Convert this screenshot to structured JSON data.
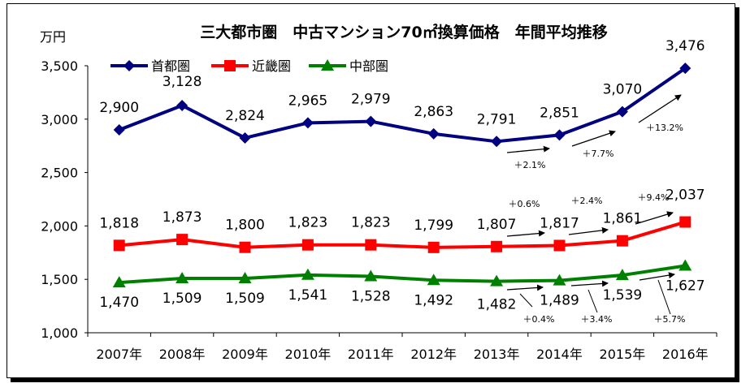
{
  "chart_data": {
    "type": "line",
    "title": "三大都市圏　中古マンション70㎡換算価格　年間平均推移",
    "ylabel": "万円",
    "xlabel": "",
    "ylim": [
      1000,
      3500
    ],
    "yticks": [
      "1,000",
      "1,500",
      "2,000",
      "2,500",
      "3,000",
      "3,500"
    ],
    "ytick_values": [
      1000,
      1500,
      2000,
      2500,
      3000,
      3500
    ],
    "grid": false,
    "legend": "top-left",
    "categories": [
      "2007年",
      "2008年",
      "2009年",
      "2010年",
      "2011年",
      "2012年",
      "2013年",
      "2014年",
      "2015年",
      "2016年"
    ],
    "series": [
      {
        "name": "首都圏",
        "color": "#000080",
        "marker": "diamond",
        "values": [
          2900,
          3128,
          2824,
          2965,
          2979,
          2863,
          2791,
          2851,
          3070,
          3476
        ],
        "labels": [
          "2,900",
          "3,128",
          "2,824",
          "2,965",
          "2,979",
          "2,863",
          "2,791",
          "2,851",
          "3,070",
          "3,476"
        ],
        "changes": [
          "＋2.1%",
          "＋7.7%",
          "＋13.2%"
        ]
      },
      {
        "name": "近畿圏",
        "color": "#ff0000",
        "marker": "square",
        "values": [
          1818,
          1873,
          1800,
          1823,
          1823,
          1799,
          1807,
          1817,
          1861,
          2037
        ],
        "labels": [
          "1,818",
          "1,873",
          "1,800",
          "1,823",
          "1,823",
          "1,799",
          "1,807",
          "1,817",
          "1,861",
          "2,037"
        ],
        "changes": [
          "＋0.6%",
          "＋2.4%",
          "＋9.4%"
        ]
      },
      {
        "name": "中部圏",
        "color": "#008000",
        "marker": "triangle",
        "values": [
          1470,
          1509,
          1509,
          1541,
          1528,
          1492,
          1482,
          1489,
          1539,
          1627
        ],
        "labels": [
          "1,470",
          "1,509",
          "1,509",
          "1,541",
          "1,528",
          "1,492",
          "1,482",
          "1,489",
          "1,539",
          "1,627"
        ],
        "changes": [
          "＋0.4%",
          "＋3.4%",
          "＋5.7%"
        ]
      }
    ]
  }
}
